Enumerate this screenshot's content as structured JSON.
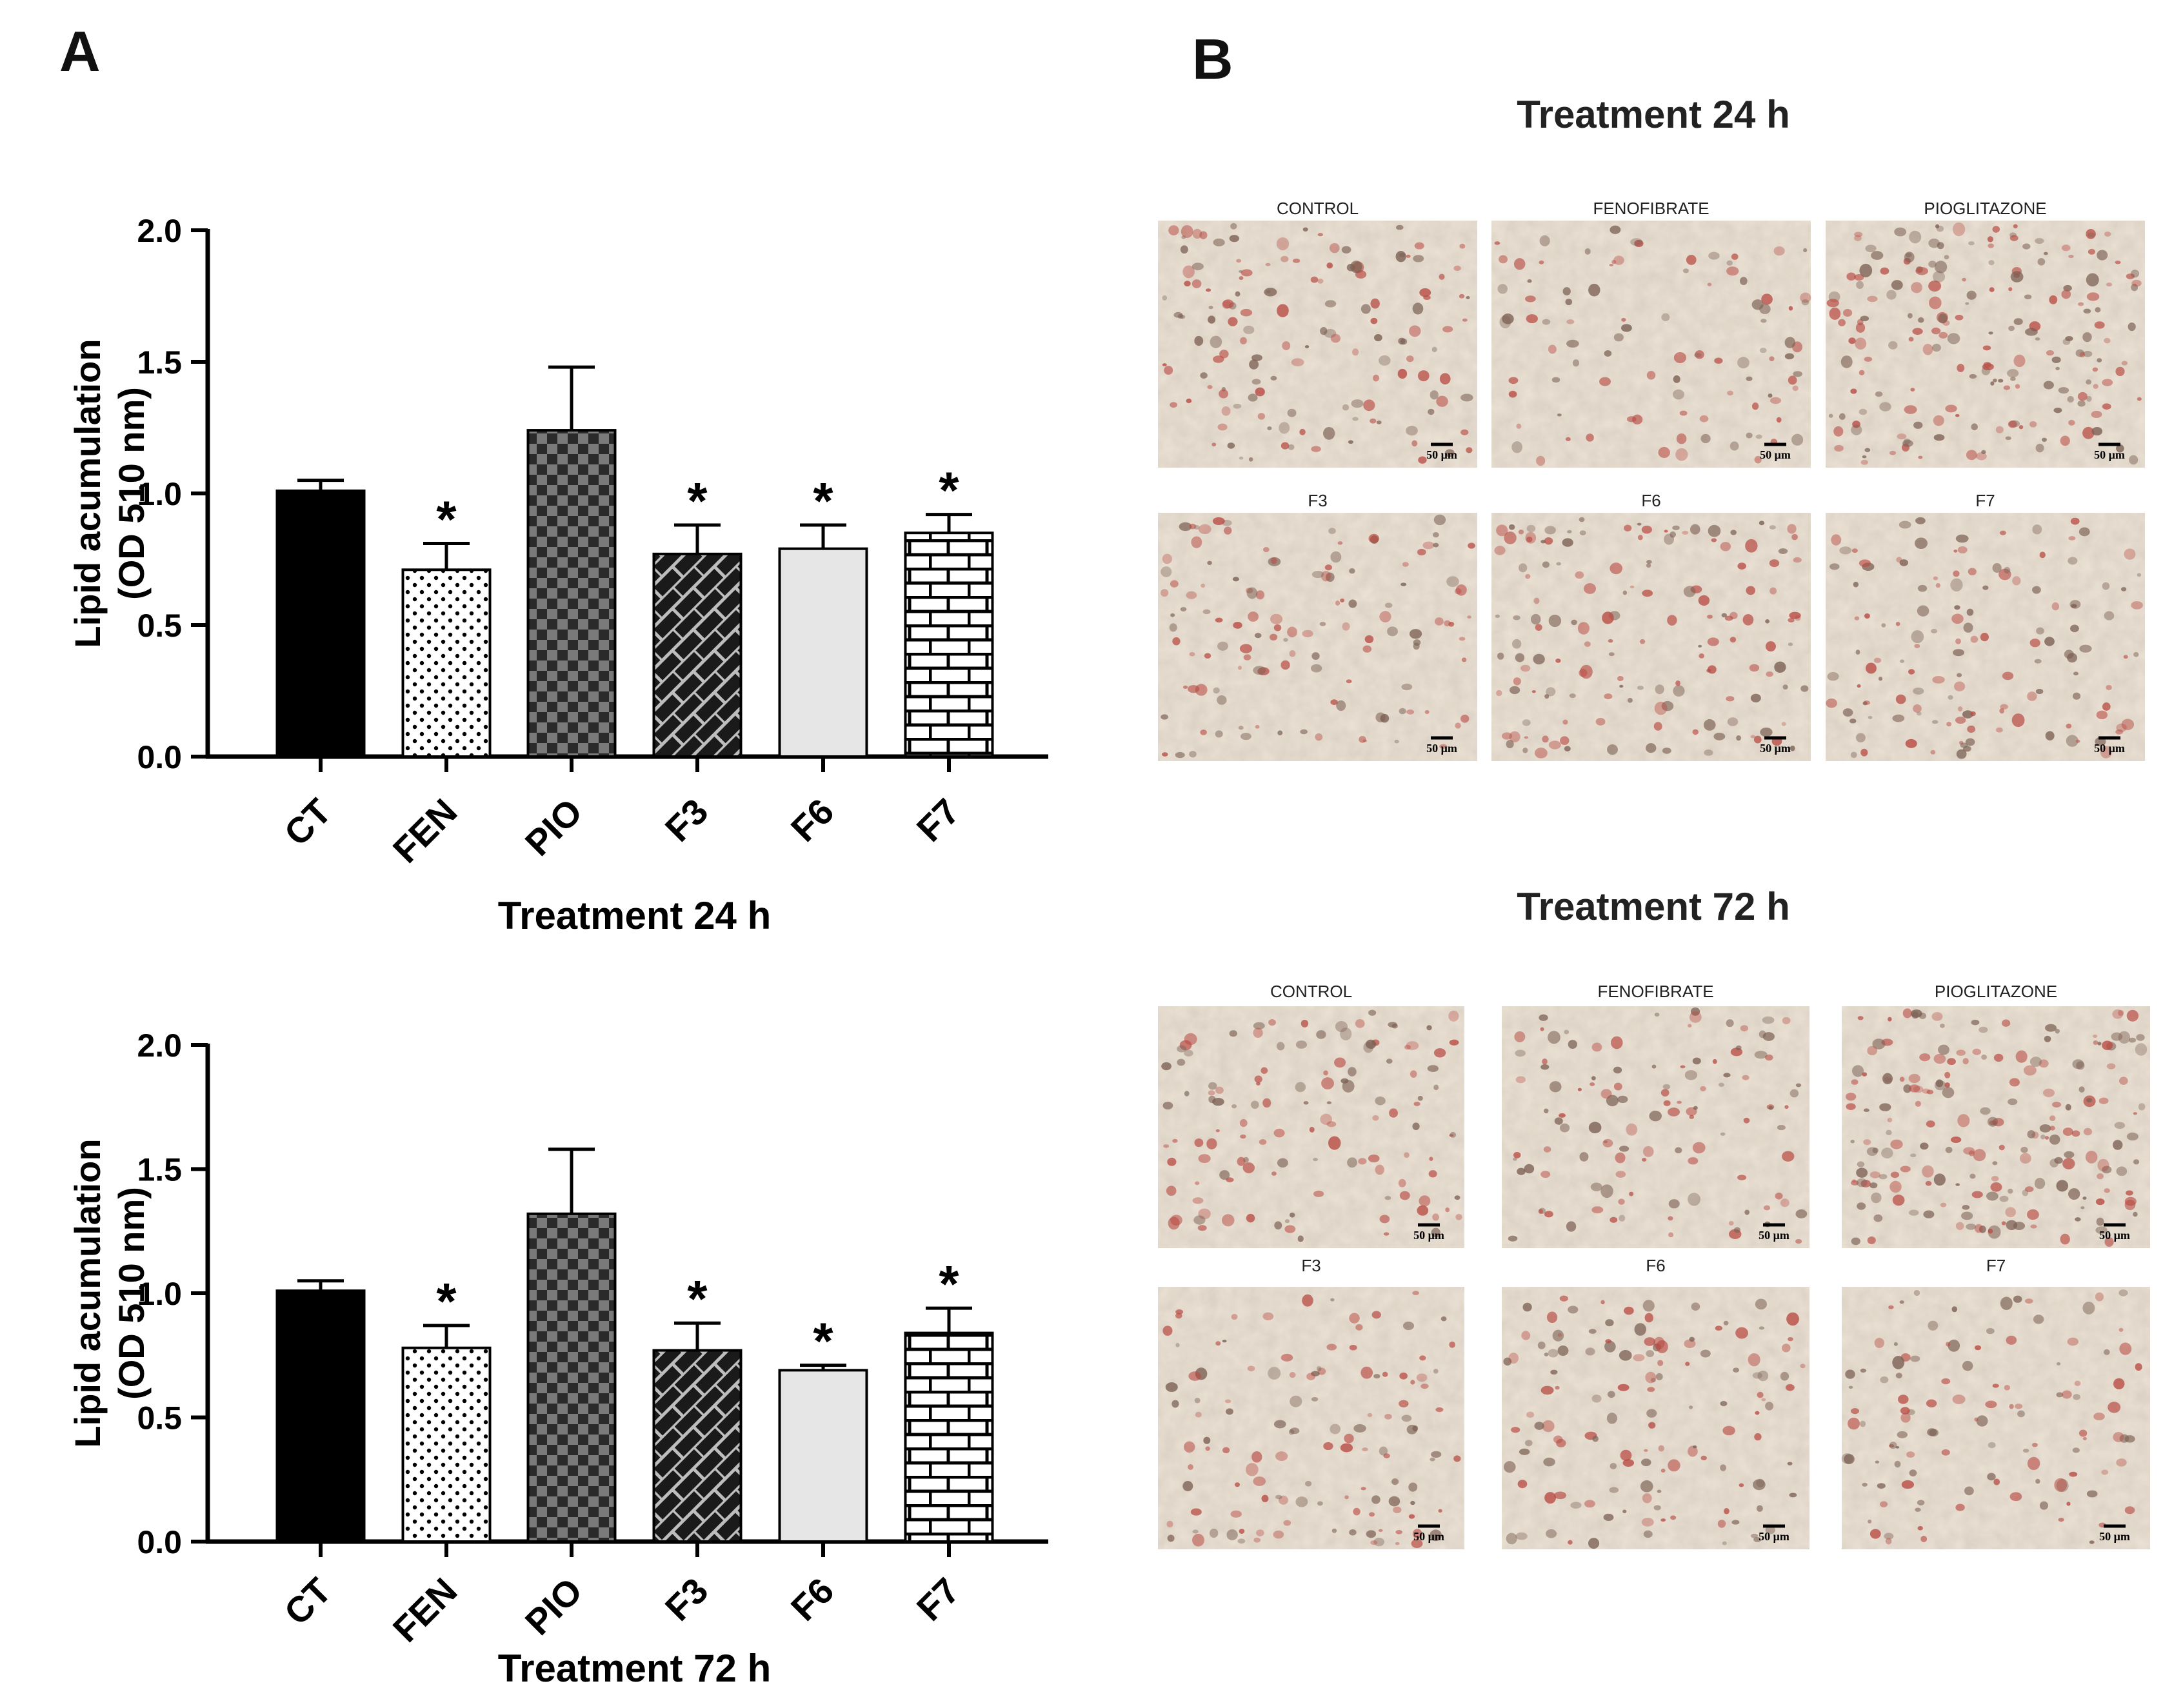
{
  "panel_a_letter": "A",
  "panel_b_letter": "B",
  "colors": {
    "CT": "#000000",
    "FEN": "#ffffff",
    "PIO": "#555555",
    "F3": "#222222",
    "F6": "#e6e6e6",
    "F7": "#ffffff",
    "stain_red": "#b84a42",
    "tissue_bg": "#ece3d6"
  },
  "chart_data": [
    {
      "type": "bar",
      "title": "",
      "xlabel": "Treatment 24 h",
      "ylabel_lines": [
        "Lipid acumulation",
        "(OD 510 nm)"
      ],
      "ylim": [
        0,
        2.0
      ],
      "ytick_labels": [
        "0.0",
        "0.5",
        "1.0",
        "1.5",
        "2.0"
      ],
      "categories": [
        "CT",
        "FEN",
        "PIO",
        "F3",
        "F6",
        "F7"
      ],
      "fill_patterns": [
        "solid-black",
        "dots",
        "checkerboard",
        "diagonal-bricks",
        "solid-light-gray",
        "bricks"
      ],
      "values": [
        1.01,
        0.71,
        1.24,
        0.77,
        0.79,
        0.85
      ],
      "error_upper": [
        1.05,
        0.81,
        1.48,
        0.88,
        0.88,
        0.92
      ],
      "significance": [
        "",
        "*",
        "",
        "*",
        "*",
        "*"
      ],
      "grid": false
    },
    {
      "type": "bar",
      "title": "",
      "xlabel": "Treatment 72 h",
      "ylabel_lines": [
        "Lipid acumulation",
        "(OD 510 nm)"
      ],
      "ylim": [
        0,
        2.0
      ],
      "ytick_labels": [
        "0.0",
        "0.5",
        "1.0",
        "1.5",
        "2.0"
      ],
      "categories": [
        "CT",
        "FEN",
        "PIO",
        "F3",
        "F6",
        "F7"
      ],
      "fill_patterns": [
        "solid-black",
        "dots",
        "checkerboard",
        "diagonal-bricks",
        "solid-light-gray",
        "bricks"
      ],
      "values": [
        1.01,
        0.78,
        1.32,
        0.77,
        0.69,
        0.84
      ],
      "error_upper": [
        1.05,
        0.87,
        1.58,
        0.88,
        0.71,
        0.94
      ],
      "significance": [
        "",
        "*",
        "",
        "*",
        "*",
        "*"
      ],
      "grid": false
    }
  ],
  "micrographs": [
    {
      "title": "Treatment 24 h",
      "labels": [
        "CONTROL",
        "FENOFIBRATE",
        "PIOGLITAZONE",
        "F3",
        "F6",
        "F7"
      ],
      "stain_density": [
        0.55,
        0.3,
        0.85,
        0.45,
        0.6,
        0.5
      ],
      "scale_bar": "50 μm"
    },
    {
      "title": "Treatment 72 h",
      "labels": [
        "CONTROL",
        "FENOFIBRATE",
        "PIOGLITAZONE",
        "F3",
        "F6",
        "F7"
      ],
      "stain_density": [
        0.45,
        0.4,
        0.85,
        0.45,
        0.5,
        0.4
      ],
      "scale_bar": "50 μm"
    }
  ]
}
